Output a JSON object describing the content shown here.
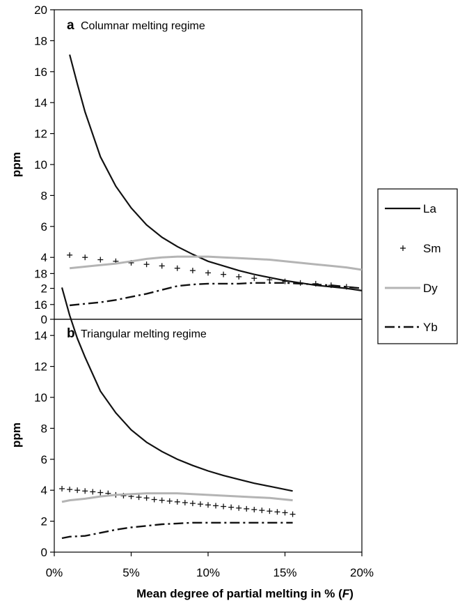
{
  "chart_data": {
    "type": "line",
    "xlabel": "Mean degree of partial melting in % (F)",
    "xticks": [
      "0%",
      "5%",
      "10%",
      "15%",
      "20%"
    ],
    "xlim": [
      0,
      20
    ],
    "legend": {
      "placement": "right",
      "entries": [
        {
          "name": "La",
          "style": "solid",
          "color": "#111111"
        },
        {
          "name": "Sm",
          "style": "plus-markers",
          "color": "#111111"
        },
        {
          "name": "Dy",
          "style": "thick-gray",
          "color": "#b4b4b4"
        },
        {
          "name": "Yb",
          "style": "dash-dot",
          "color": "#111111"
        }
      ]
    },
    "panels": [
      {
        "letter": "a",
        "title": "Columnar melting regime",
        "ylabel": "ppm",
        "ylim": [
          0,
          20
        ],
        "yticks": [
          "0",
          "2",
          "4",
          "6",
          "8",
          "10",
          "12",
          "14",
          "16",
          "18",
          "20"
        ],
        "series": [
          {
            "name": "La",
            "x": [
              1,
              1.5,
              2,
              3,
              4,
              5,
              6,
              7,
              8,
              9,
              10,
              11,
              12,
              13,
              14,
              15,
              16,
              17,
              18,
              19,
              20
            ],
            "y": [
              17.1,
              15.2,
              13.4,
              10.5,
              8.6,
              7.2,
              6.1,
              5.3,
              4.7,
              4.2,
              3.75,
              3.45,
              3.15,
              2.9,
              2.7,
              2.5,
              2.35,
              2.2,
              2.1,
              2.0,
              1.85
            ]
          },
          {
            "name": "Sm",
            "x": [
              1,
              2,
              3,
              4,
              5,
              6,
              7,
              8,
              9,
              10,
              11,
              12,
              13,
              14,
              15,
              16,
              17,
              18,
              19
            ],
            "y": [
              4.15,
              4.0,
              3.85,
              3.75,
              3.65,
              3.55,
              3.45,
              3.3,
              3.15,
              3.0,
              2.9,
              2.75,
              2.65,
              2.55,
              2.45,
              2.35,
              2.3,
              2.2,
              2.1
            ]
          },
          {
            "name": "Dy",
            "x": [
              1,
              2,
              3,
              4,
              5,
              6,
              7,
              8,
              9,
              10,
              11,
              12,
              13,
              14,
              15,
              16,
              17,
              18,
              19,
              20
            ],
            "y": [
              3.3,
              3.4,
              3.5,
              3.6,
              3.75,
              3.9,
              4.0,
              4.05,
              4.05,
              4.05,
              4.0,
              3.95,
              3.9,
              3.85,
              3.75,
              3.65,
              3.55,
              3.45,
              3.35,
              3.2
            ]
          },
          {
            "name": "Yb",
            "x": [
              1,
              2,
              3,
              4,
              5,
              6,
              7,
              8,
              9,
              10,
              11,
              12,
              13,
              14,
              15,
              16,
              17,
              18,
              19,
              20
            ],
            "y": [
              0.9,
              1.0,
              1.1,
              1.25,
              1.45,
              1.65,
              1.9,
              2.15,
              2.25,
              2.3,
              2.3,
              2.3,
              2.35,
              2.35,
              2.35,
              2.3,
              2.25,
              2.2,
              2.1,
              2.0
            ]
          }
        ]
      },
      {
        "letter": "b",
        "title": "Triangular melting regime",
        "ylabel": "ppm",
        "ylim": [
          0,
          20
        ],
        "yticks": [
          "0",
          "2",
          "4",
          "6",
          "8",
          "10",
          "12",
          "14",
          "16",
          "18"
        ],
        "series": [
          {
            "name": "La",
            "x": [
              0.5,
              1,
              1.5,
              2,
              3,
              4,
              5,
              6,
              7,
              8,
              9,
              10,
              11,
              12,
              13,
              14,
              15,
              15.5
            ],
            "y": [
              17.1,
              15.3,
              13.8,
              12.6,
              10.4,
              9.0,
              7.9,
              7.1,
              6.5,
              6.0,
              5.6,
              5.25,
              4.95,
              4.7,
              4.45,
              4.25,
              4.05,
              3.95
            ]
          },
          {
            "name": "Sm",
            "x": [
              0.5,
              1,
              1.5,
              2,
              2.5,
              3,
              3.5,
              4,
              4.5,
              5,
              5.5,
              6,
              6.5,
              7,
              7.5,
              8,
              8.5,
              9,
              9.5,
              10,
              10.5,
              11,
              11.5,
              12,
              12.5,
              13,
              13.5,
              14,
              14.5,
              15,
              15.5
            ],
            "y": [
              4.1,
              4.05,
              4.0,
              3.95,
              3.9,
              3.85,
              3.8,
              3.7,
              3.65,
              3.6,
              3.55,
              3.5,
              3.4,
              3.35,
              3.3,
              3.25,
              3.2,
              3.15,
              3.1,
              3.05,
              3.0,
              2.95,
              2.9,
              2.85,
              2.8,
              2.75,
              2.7,
              2.65,
              2.6,
              2.55,
              2.45
            ]
          },
          {
            "name": "Dy",
            "x": [
              0.5,
              1,
              2,
              3,
              4,
              5,
              6,
              7,
              8,
              9,
              10,
              11,
              12,
              13,
              14,
              15,
              15.5
            ],
            "y": [
              3.25,
              3.35,
              3.45,
              3.6,
              3.7,
              3.75,
              3.8,
              3.8,
              3.8,
              3.75,
              3.7,
              3.65,
              3.6,
              3.55,
              3.5,
              3.4,
              3.35
            ]
          },
          {
            "name": "Yb",
            "x": [
              0.5,
              1,
              2,
              3,
              4,
              5,
              6,
              7,
              8,
              9,
              10,
              11,
              12,
              13,
              14,
              15,
              15.5
            ],
            "y": [
              0.9,
              1.0,
              1.05,
              1.25,
              1.45,
              1.6,
              1.7,
              1.8,
              1.85,
              1.9,
              1.9,
              1.9,
              1.9,
              1.9,
              1.9,
              1.9,
              1.9
            ]
          }
        ]
      }
    ]
  }
}
